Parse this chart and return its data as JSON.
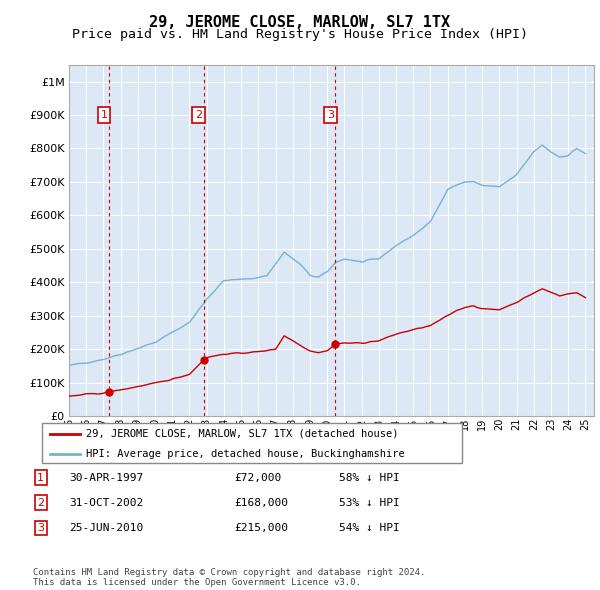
{
  "title": "29, JEROME CLOSE, MARLOW, SL7 1TX",
  "subtitle": "Price paid vs. HM Land Registry's House Price Index (HPI)",
  "title_fontsize": 11,
  "subtitle_fontsize": 9.5,
  "ytick_values": [
    0,
    100000,
    200000,
    300000,
    400000,
    500000,
    600000,
    700000,
    800000,
    900000,
    1000000
  ],
  "ylim": [
    0,
    1050000
  ],
  "xlim_start": 1995.0,
  "xlim_end": 2025.5,
  "plot_bg_color": "#dce8f5",
  "grid_color": "#ffffff",
  "hpi_line_color": "#7ab0d4",
  "sale_line_color": "#cc0000",
  "dashed_line_color": "#cc0000",
  "marker_label_color": "#cc0000",
  "legend_label1": "29, JEROME CLOSE, MARLOW, SL7 1TX (detached house)",
  "legend_label2": "HPI: Average price, detached house, Buckinghamshire",
  "footer": "Contains HM Land Registry data © Crown copyright and database right 2024.\nThis data is licensed under the Open Government Licence v3.0.",
  "sales": [
    {
      "num": 1,
      "date": "30-APR-1997",
      "price": 72000,
      "year": 1997.33,
      "pct": "58% ↓ HPI"
    },
    {
      "num": 2,
      "date": "31-OCT-2002",
      "price": 168000,
      "year": 2002.83,
      "pct": "53% ↓ HPI"
    },
    {
      "num": 3,
      "date": "25-JUN-2010",
      "price": 215000,
      "year": 2010.48,
      "pct": "54% ↓ HPI"
    }
  ],
  "xtick_years": [
    1995,
    1996,
    1997,
    1998,
    1999,
    2000,
    2001,
    2002,
    2003,
    2004,
    2005,
    2006,
    2007,
    2008,
    2009,
    2010,
    2011,
    2012,
    2013,
    2014,
    2015,
    2016,
    2017,
    2018,
    2019,
    2020,
    2021,
    2022,
    2023,
    2024,
    2025
  ]
}
